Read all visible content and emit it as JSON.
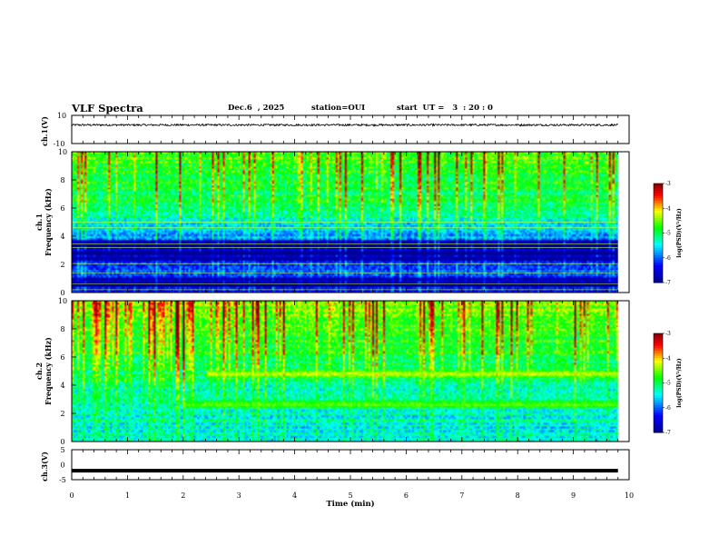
{
  "header": {
    "title": "VLF Spectra",
    "date": "Dec.6  , 2025",
    "station": "station=OUI",
    "start": "start  UT =   3  : 20 : 0"
  },
  "chart_data": [
    {
      "type": "line",
      "panel": "ch1-waveform",
      "ylabel": "ch.1(V)",
      "ylim": [
        -10,
        10
      ],
      "yticks": [
        "10",
        "-10"
      ],
      "xlim": [
        0,
        10
      ],
      "baseline": 3.2,
      "noise_amplitude": 0.7
    },
    {
      "type": "heatmap",
      "panel": "ch1-spectrogram",
      "ylabel_top": "ch.1",
      "ylabel": "Frequency  (kHz)",
      "ylim": [
        0,
        10
      ],
      "yticks": [
        "0",
        "2",
        "4",
        "6",
        "8",
        "10"
      ],
      "xlim": [
        0,
        9.8
      ],
      "base_log_psd_profile": [
        [
          0,
          -6.3
        ],
        [
          1,
          -6.1
        ],
        [
          2,
          -6.2
        ],
        [
          3,
          -6.6
        ],
        [
          3.5,
          -6.0
        ],
        [
          4.5,
          -5.7
        ],
        [
          5,
          -5.4
        ],
        [
          6,
          -5.2
        ],
        [
          8,
          -5.0
        ],
        [
          10,
          -4.9
        ]
      ],
      "dark_bands_khz": [
        0.5,
        0.8,
        2.4,
        2.8,
        3.3,
        3.6
      ],
      "line_bands_khz": [
        0.2,
        0.6,
        1.4,
        2.05,
        3.2,
        3.45,
        4.6,
        5.0
      ],
      "colorbar": {
        "label": "log(PSD)(V²/Hz)",
        "range": [
          -7,
          -3
        ],
        "ticks": [
          "-3",
          "-4",
          "-5",
          "-6",
          "-7"
        ]
      }
    },
    {
      "type": "heatmap",
      "panel": "ch2-spectrogram",
      "ylabel_top": "ch.2",
      "ylabel": "Frequency  (kHz)",
      "ylim": [
        0,
        10
      ],
      "yticks": [
        "0",
        "2",
        "4",
        "6",
        "8",
        "10"
      ],
      "xlim": [
        0,
        9.8
      ],
      "base_log_psd_profile": [
        [
          0,
          -5.6
        ],
        [
          1,
          -5.5
        ],
        [
          2,
          -5.4
        ],
        [
          3,
          -5.4
        ],
        [
          4,
          -5.3
        ],
        [
          6,
          -5.0
        ],
        [
          8,
          -4.8
        ],
        [
          10,
          -4.6
        ]
      ],
      "emission_bands": [
        {
          "center_khz": 4.8,
          "width_khz": 0.5,
          "t_start_min": 2.4,
          "t_end_min": 9.8,
          "peak_log_psd": -4.2
        },
        {
          "center_khz": 2.6,
          "width_khz": 0.6,
          "t_start_min": 2.0,
          "t_end_min": 9.8,
          "peak_log_psd": -4.5
        }
      ],
      "colorbar": {
        "label": "log(PSD)(V²/Hz)",
        "range": [
          -7,
          -3
        ],
        "ticks": [
          "-3",
          "-4",
          "-5",
          "-6",
          "-7"
        ]
      }
    },
    {
      "type": "line",
      "panel": "ch3-waveform",
      "ylabel": "ch.3(V)",
      "ylim": [
        -5,
        5
      ],
      "yticks": [
        "5",
        "0",
        "-5"
      ],
      "xlim": [
        0,
        10
      ],
      "baseline": -2.0,
      "noise_amplitude": 0.15
    }
  ],
  "xaxis": {
    "label": "Time  (min)",
    "ticks": [
      "0",
      "1",
      "2",
      "3",
      "4",
      "5",
      "6",
      "7",
      "8",
      "9",
      "10"
    ]
  },
  "colors": {
    "colormap": [
      "#00008f",
      "#0000ff",
      "#00ffff",
      "#00ff00",
      "#ffff00",
      "#ff0000",
      "#800000"
    ]
  }
}
